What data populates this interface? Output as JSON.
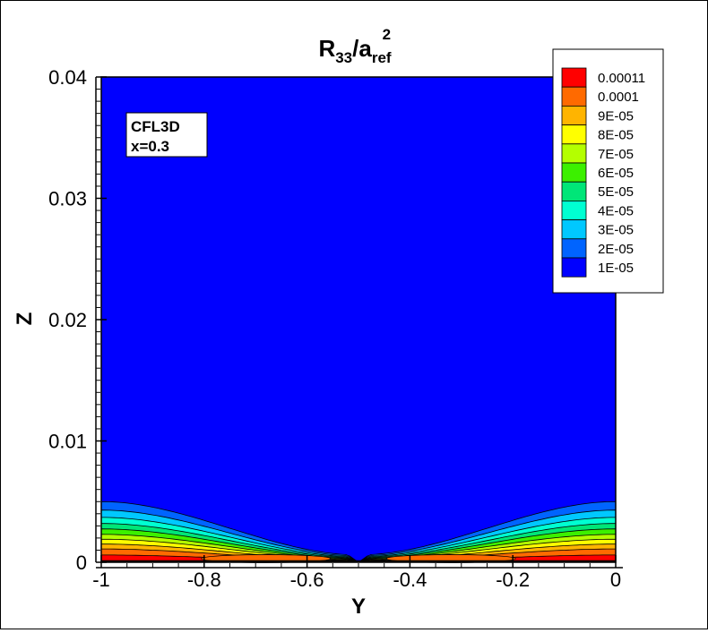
{
  "chart_data": {
    "type": "contour",
    "title": {
      "main": "R",
      "sub": "33",
      "mid": "/a",
      "sub2": "ref",
      "sup": "2"
    },
    "xlabel": "Y",
    "ylabel": "Z",
    "xlim": [
      -1,
      0
    ],
    "ylim": [
      0,
      0.04
    ],
    "xticks": [
      "-1",
      "-0.8",
      "-0.6",
      "-0.4",
      "-0.2",
      "0"
    ],
    "yticks": [
      "0",
      "0.01",
      "0.02",
      "0.03",
      "0.04"
    ],
    "annotation": [
      "CFL3D",
      "x=0.3"
    ],
    "legend": {
      "position": "top-right",
      "levels": [
        {
          "label": "0.00011",
          "color": "#ff0000"
        },
        {
          "label": "0.0001",
          "color": "#ff6a00"
        },
        {
          "label": "9E-05",
          "color": "#ffb400"
        },
        {
          "label": "8E-05",
          "color": "#ffff00"
        },
        {
          "label": "7E-05",
          "color": "#b4ff00"
        },
        {
          "label": "6E-05",
          "color": "#3cf000"
        },
        {
          "label": "5E-05",
          "color": "#00e678"
        },
        {
          "label": "4E-05",
          "color": "#00ffd2"
        },
        {
          "label": "3E-05",
          "color": "#00c8ff"
        },
        {
          "label": "2E-05",
          "color": "#0064ff"
        },
        {
          "label": "1E-05",
          "color": "#0000ff"
        }
      ]
    },
    "field": {
      "background_level": "1E-05",
      "layer_top_at_edges": 0.005,
      "dip_location_y": -0.5,
      "peak_regions_y": [
        -0.68,
        -0.32
      ],
      "peak_level": "0.0001"
    }
  }
}
